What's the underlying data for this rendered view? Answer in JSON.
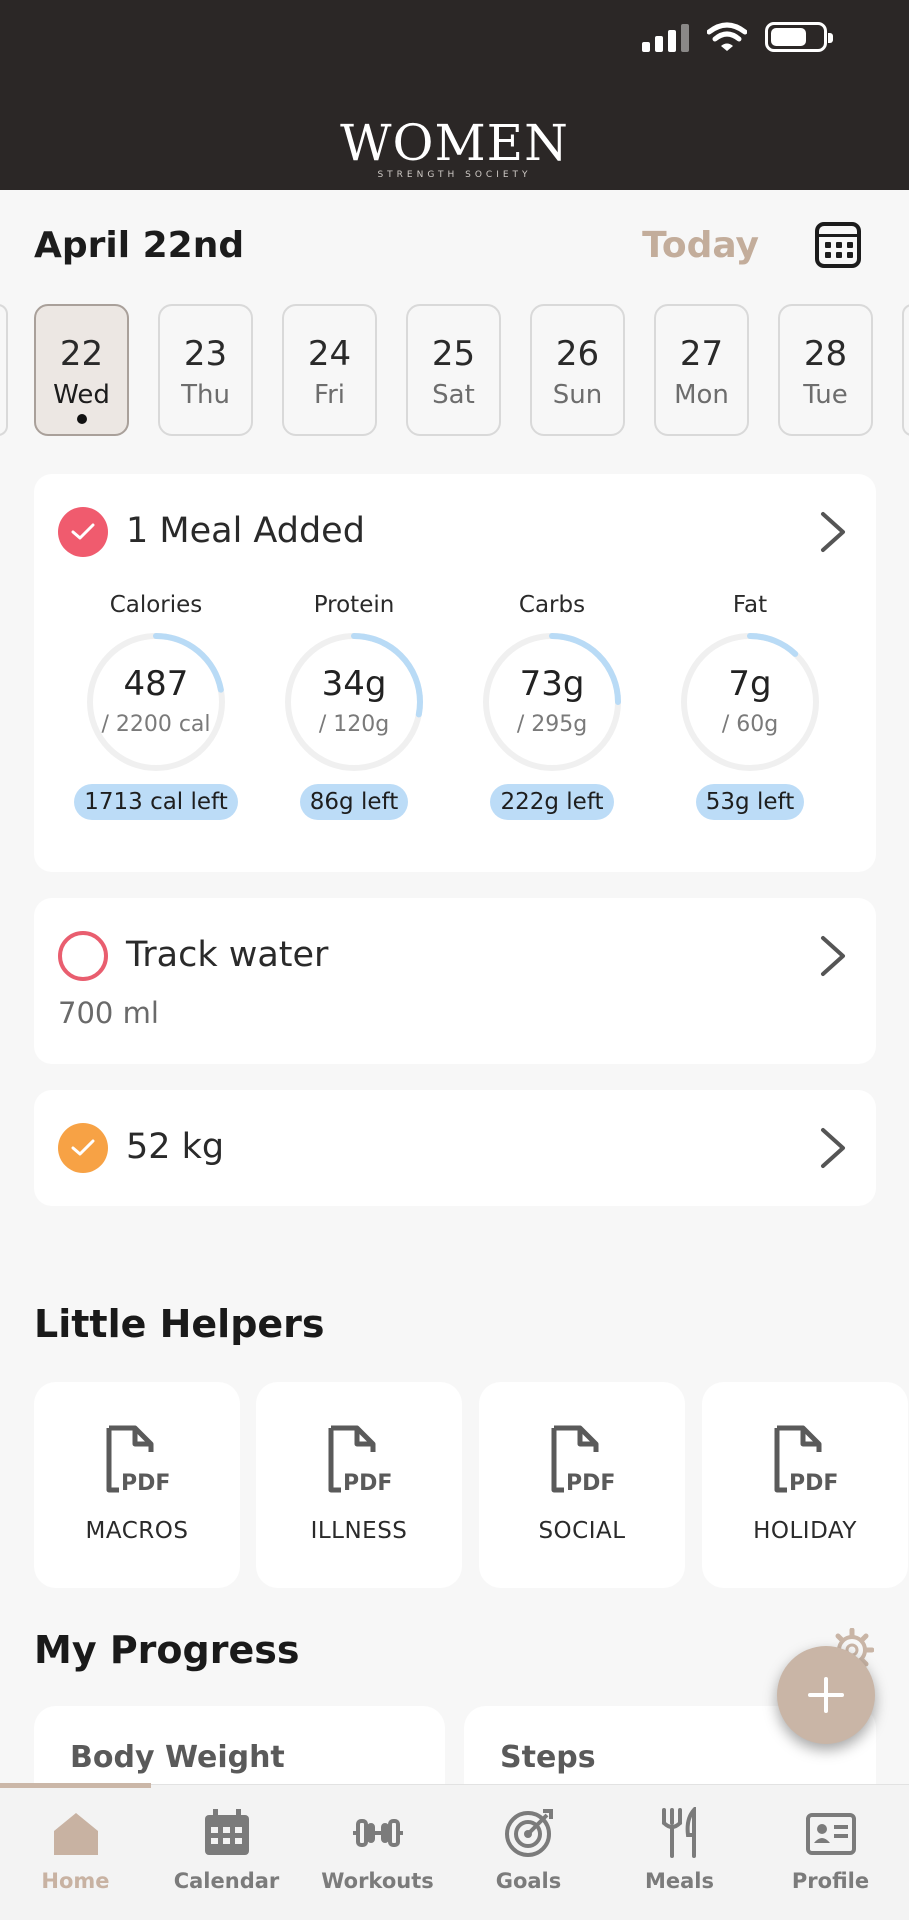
{
  "header": {
    "logo_main": "WOMEN",
    "logo_sub": "STRENGTH SOCIETY"
  },
  "date_header": {
    "title": "April 22nd",
    "today_label": "Today"
  },
  "days": [
    {
      "num": "22",
      "dow": "Wed"
    },
    {
      "num": "23",
      "dow": "Thu"
    },
    {
      "num": "24",
      "dow": "Fri"
    },
    {
      "num": "25",
      "dow": "Sat"
    },
    {
      "num": "26",
      "dow": "Sun"
    },
    {
      "num": "27",
      "dow": "Mon"
    },
    {
      "num": "28",
      "dow": "Tue"
    }
  ],
  "meal_card": {
    "title": "1 Meal Added",
    "macros": [
      {
        "name": "Calories",
        "value": "487",
        "target": "/ 2200 cal",
        "left": "1713 cal left",
        "progress": 0.22
      },
      {
        "name": "Protein",
        "value": "34g",
        "target": "/ 120g",
        "left": "86g left",
        "progress": 0.28
      },
      {
        "name": "Carbs",
        "value": "73g",
        "target": "/ 295g",
        "left": "222g left",
        "progress": 0.25
      },
      {
        "name": "Fat",
        "value": "7g",
        "target": "/ 60g",
        "left": "53g left",
        "progress": 0.12
      }
    ]
  },
  "water_card": {
    "title": "Track water",
    "amount": "700 ml"
  },
  "weight_card": {
    "title": "52 kg"
  },
  "helpers": {
    "title": "Little Helpers",
    "items": [
      {
        "label": "MACROS"
      },
      {
        "label": "ILLNESS"
      },
      {
        "label": "SOCIAL"
      },
      {
        "label": "HOLIDAY"
      }
    ]
  },
  "progress": {
    "title": "My Progress",
    "cards": [
      {
        "label": "Body Weight"
      },
      {
        "label": "Steps"
      }
    ]
  },
  "colors": {
    "accent": "#c8b2a2",
    "ring": "#b9dbf6",
    "check_red": "#f05b6e",
    "check_orange": "#f7a245"
  },
  "tabbar": {
    "tabs": [
      {
        "label": "Home",
        "icon": "home-icon"
      },
      {
        "label": "Calendar",
        "icon": "calendar-icon"
      },
      {
        "label": "Workouts",
        "icon": "dumbbell-icon"
      },
      {
        "label": "Goals",
        "icon": "target-icon"
      },
      {
        "label": "Meals",
        "icon": "fork-knife-icon"
      },
      {
        "label": "Profile",
        "icon": "id-card-icon"
      }
    ]
  }
}
